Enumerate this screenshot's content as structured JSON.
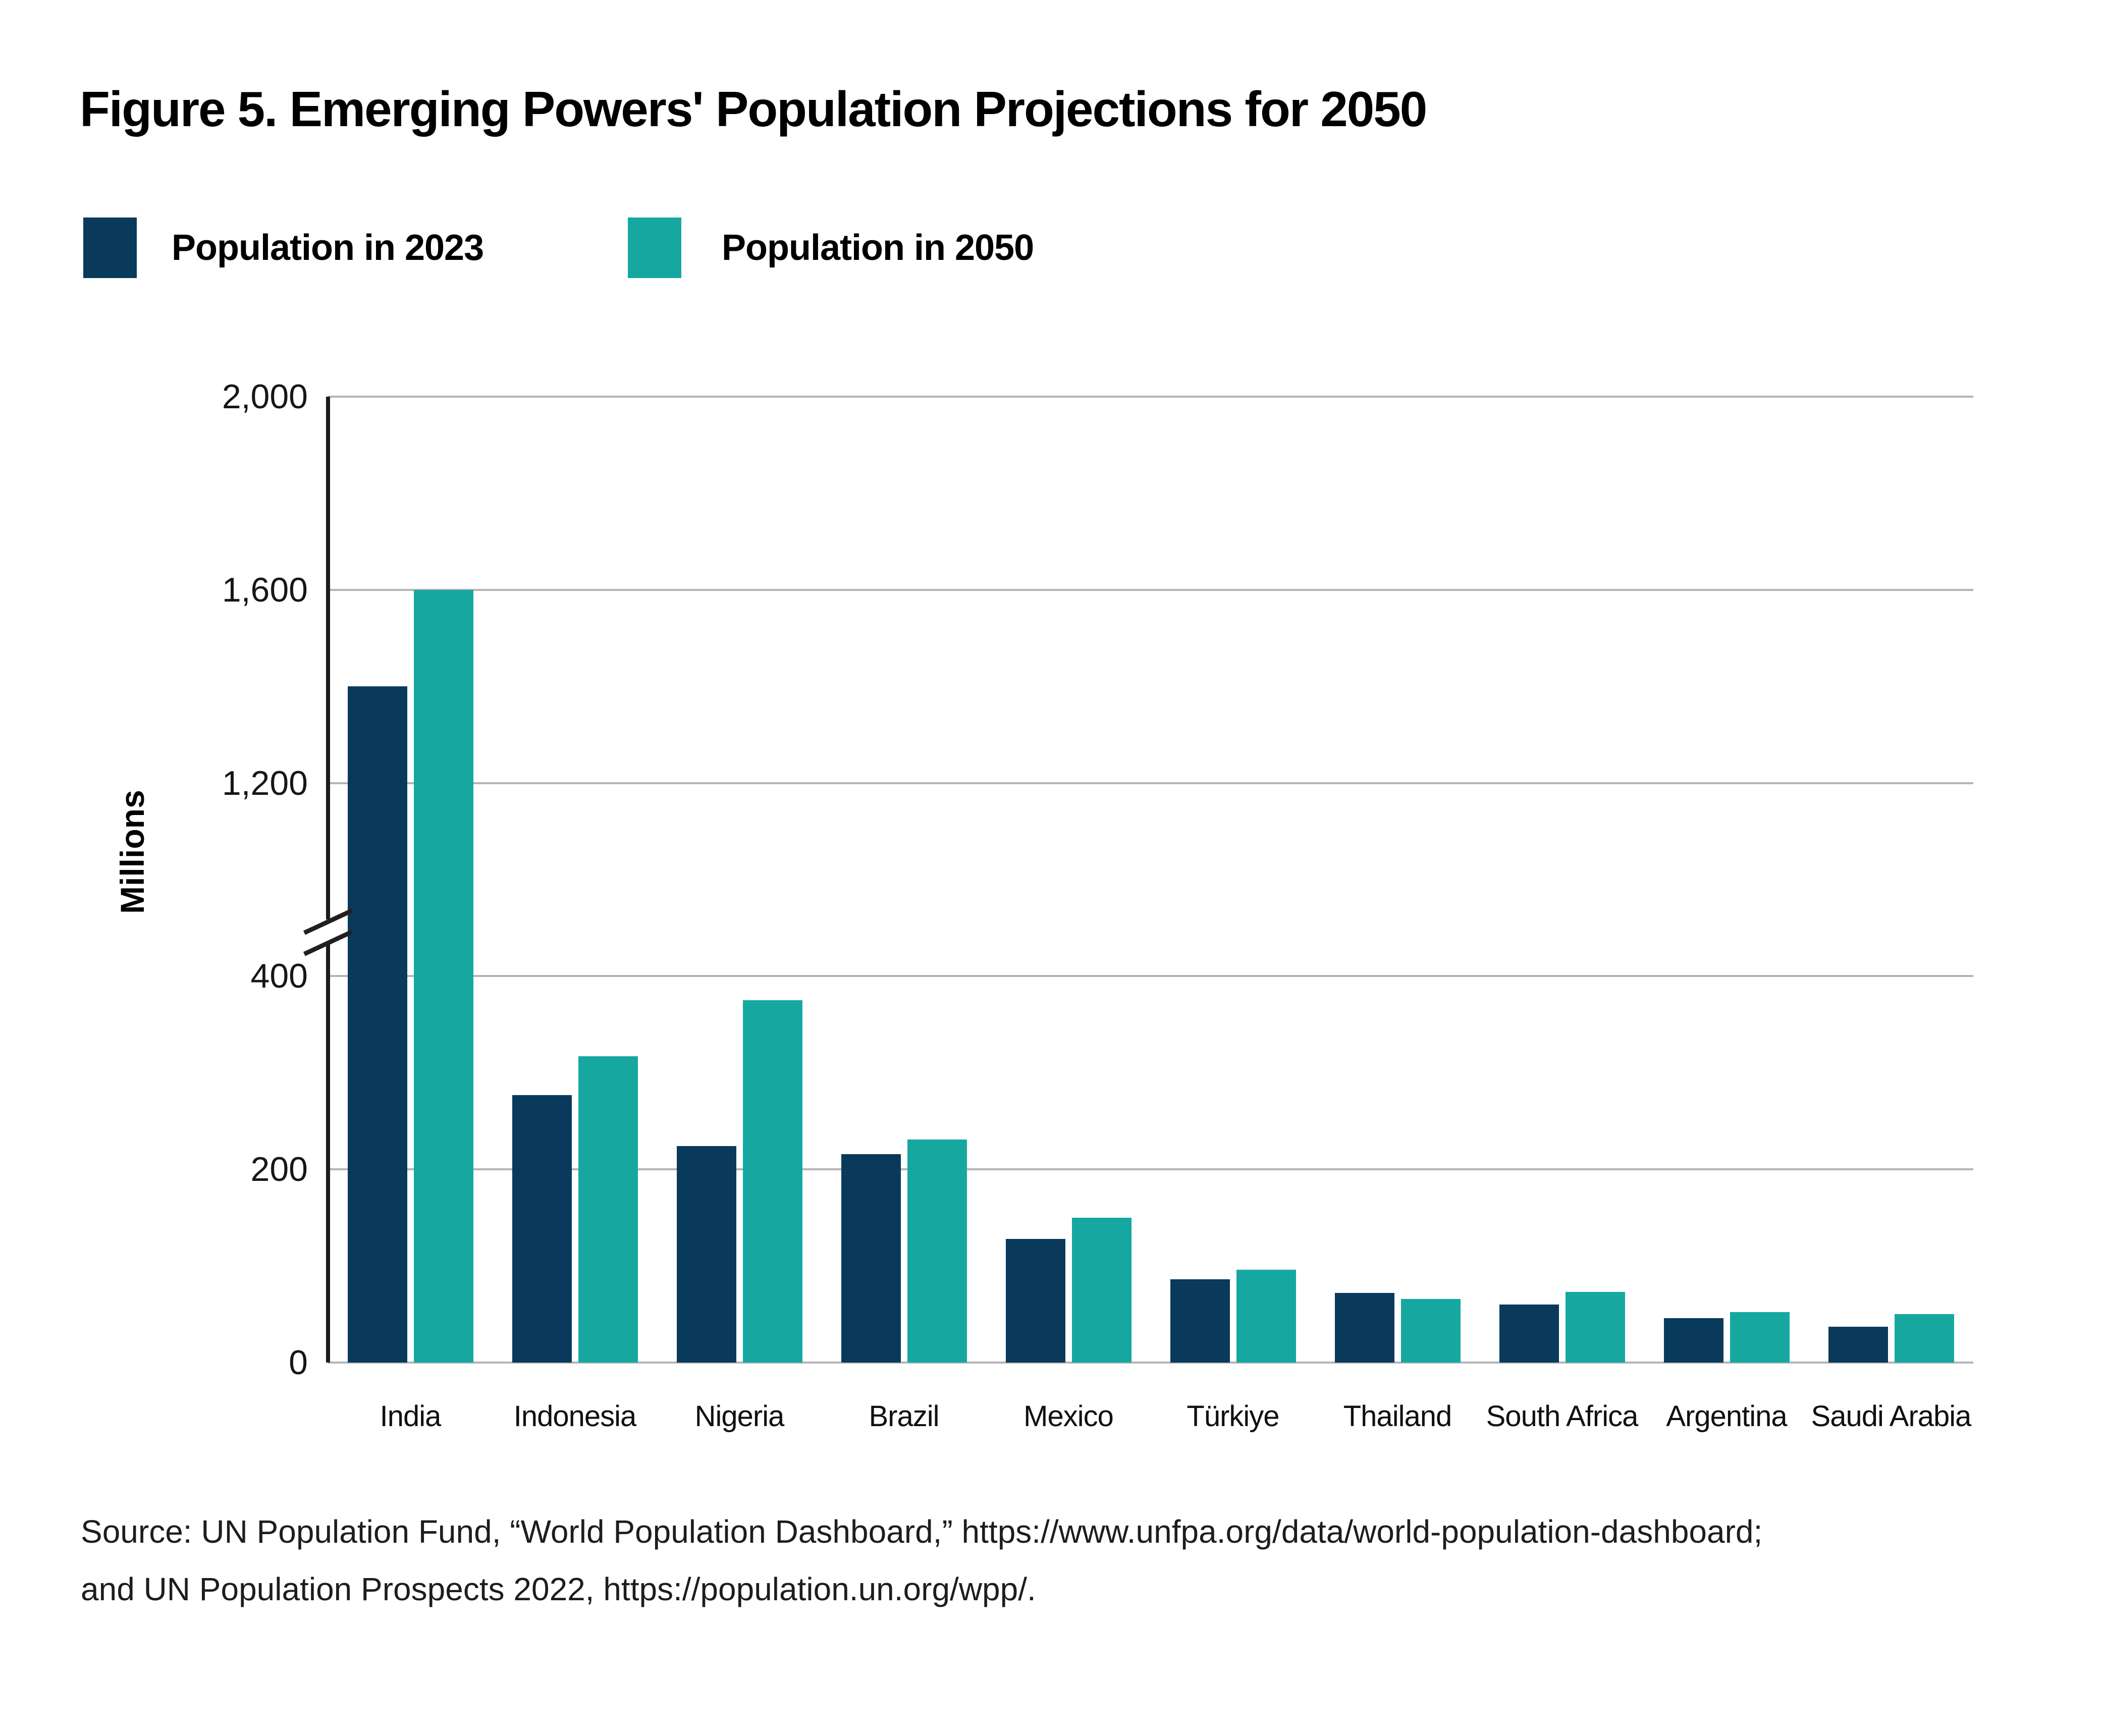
{
  "figure": {
    "title": "Figure 5. Emerging Powers' Population Projections for 2050",
    "source_line1": "Source: UN Population Fund, “World Population Dashboard,” https://www.unfpa.org/data/world-population-dashboard;",
    "source_line2": "and UN Population Prospects 2022,  https://population.un.org/wpp/."
  },
  "legend": {
    "items": [
      {
        "label": "Population in 2023",
        "color": "#093a5b"
      },
      {
        "label": "Population in 2050",
        "color": "#16a8a0"
      }
    ]
  },
  "chart_data": {
    "type": "bar",
    "title": "Figure 5. Emerging Powers' Population Projections for 2050",
    "xlabel": "",
    "ylabel": "Millions",
    "units": "millions of people",
    "grid": true,
    "legend_position": "top-left",
    "y_axis": {
      "tick_values": [
        0,
        200,
        400,
        1200,
        1600,
        2000
      ],
      "tick_labels": [
        "0",
        "200",
        "400",
        "1,200",
        "1,600",
        "2,000"
      ],
      "axis_break": {
        "present": true,
        "between": [
          400,
          1200
        ]
      }
    },
    "categories": [
      "India",
      "Indonesia",
      "Nigeria",
      "Brazil",
      "Mexico",
      "Türkiye",
      "Thailand",
      "South Africa",
      "Argentina",
      "Saudi Arabia"
    ],
    "series": [
      {
        "name": "Population in 2023",
        "color": "#093a5b",
        "values": [
          1400,
          277,
          224,
          216,
          128,
          86,
          72,
          60,
          46,
          37
        ]
      },
      {
        "name": "Population in 2050",
        "color": "#16a8a0",
        "values": [
          1600,
          317,
          375,
          231,
          150,
          96,
          66,
          73,
          52,
          50
        ]
      }
    ]
  }
}
